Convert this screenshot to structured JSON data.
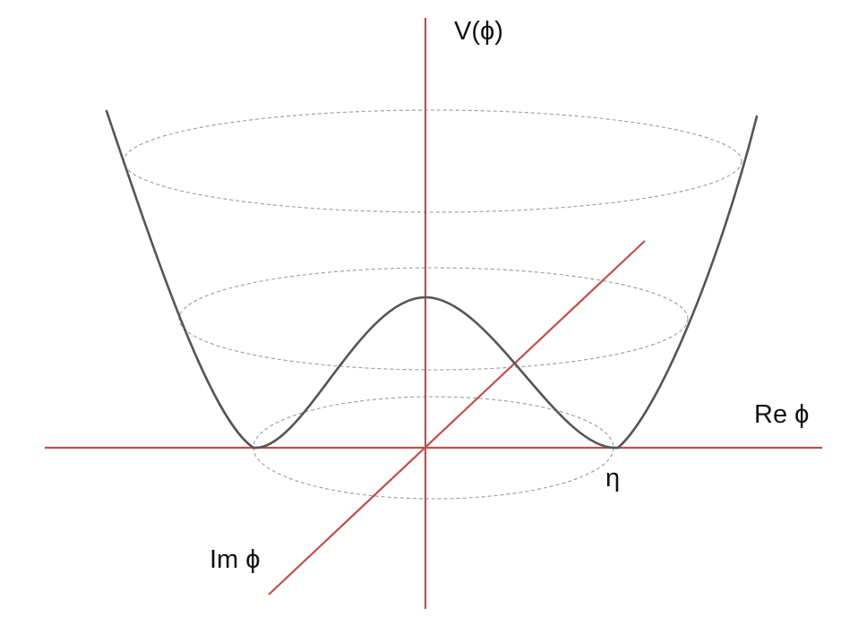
{
  "labels": {
    "y_axis": "V(ϕ)",
    "re_axis": "Re ϕ",
    "im_axis": "Im ϕ",
    "vev": "η"
  },
  "colors": {
    "axes": "#c0504d",
    "potential_curve": "#555555",
    "dashed_rings": "#9a9a9a",
    "text": "#111111",
    "background": "#ffffff"
  }
}
